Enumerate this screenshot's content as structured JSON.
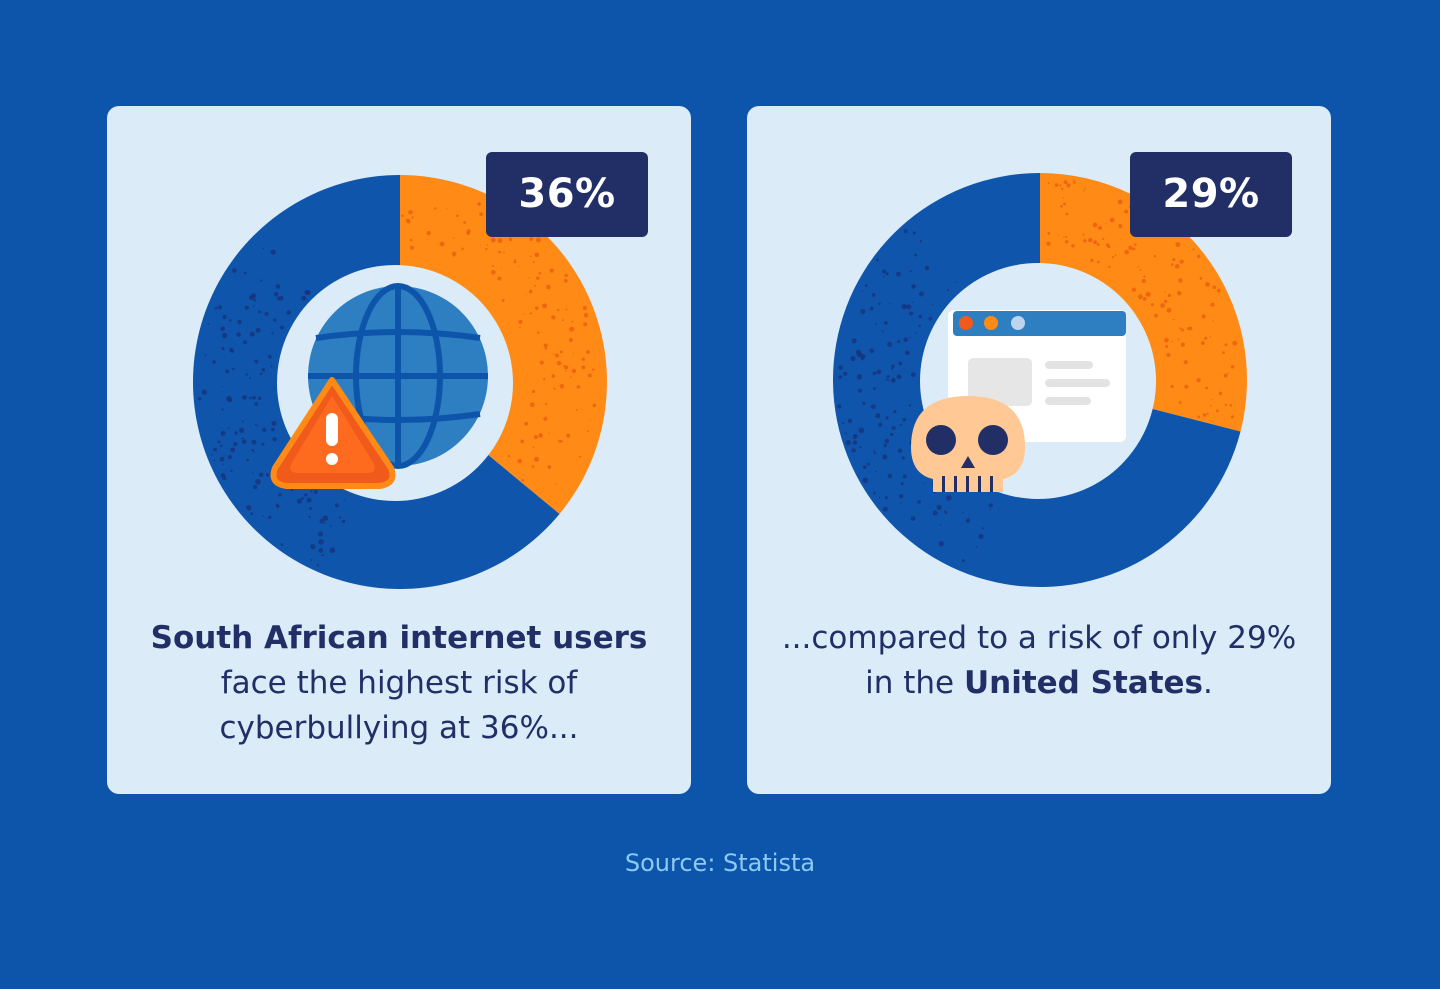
{
  "colors": {
    "background": "#0d55ab",
    "card": "#dbebf8",
    "donut_main": "#0f55ab",
    "donut_highlight": "#ff8b16",
    "badge": "#212f66",
    "text": "#212f66",
    "source_text": "#8ccaf2"
  },
  "chart_data": [
    {
      "type": "pie",
      "donut": true,
      "values": [
        36,
        64
      ],
      "colors": [
        "#ff8b16",
        "#0f55ab"
      ],
      "badge_label": "36%",
      "icon": "globe-warning-icon"
    },
    {
      "type": "pie",
      "donut": true,
      "values": [
        29,
        71
      ],
      "colors": [
        "#ff8b16",
        "#0f55ab"
      ],
      "badge_label": "29%",
      "icon": "browser-skull-icon"
    }
  ],
  "cards": [
    {
      "caption_parts": {
        "bold_lead": "South African internet users",
        "rest": " face the highest risk of cyberbullying at 36%..."
      }
    },
    {
      "caption_parts": {
        "lead": "...compared to a risk of only 29% in the ",
        "bold": "United States",
        "end": "."
      }
    }
  ],
  "source": "Source: Statista"
}
